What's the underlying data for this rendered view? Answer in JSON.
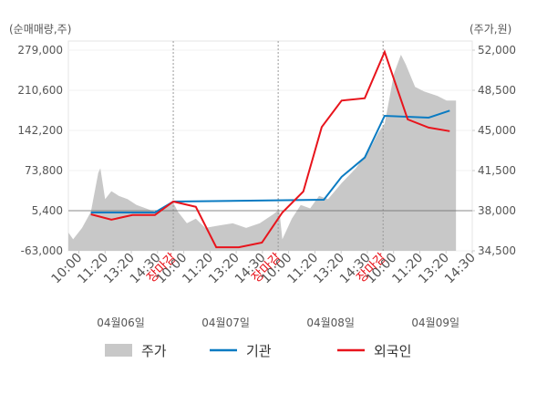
{
  "chart_data": {
    "type": "line",
    "ylabel": "(순매매량,주)",
    "y2label": "(주가,원)",
    "xlim": [
      0,
      77
    ],
    "xticks": [
      {
        "value": 2,
        "label": "10:00"
      },
      {
        "value": 7,
        "label": "11:20"
      },
      {
        "value": 12,
        "label": "13:20"
      },
      {
        "value": 17,
        "label": "14:30"
      },
      {
        "value": 20,
        "label": "장마감"
      },
      {
        "value": 22,
        "label": "10:00"
      },
      {
        "value": 27,
        "label": "11:20"
      },
      {
        "value": 32,
        "label": "13:20"
      },
      {
        "value": 37,
        "label": "14:30"
      },
      {
        "value": 40,
        "label": "장마감"
      },
      {
        "value": 42,
        "label": "10:00"
      },
      {
        "value": 47,
        "label": "11:20"
      },
      {
        "value": 52,
        "label": "13:20"
      },
      {
        "value": 57,
        "label": "14:30"
      },
      {
        "value": 60,
        "label": "장마감"
      },
      {
        "value": 62,
        "label": "10:00"
      },
      {
        "value": 67,
        "label": "11:20"
      },
      {
        "value": 72,
        "label": "13:20"
      },
      {
        "value": 77,
        "label": "14:30"
      }
    ],
    "x_groups": [
      "04월06일",
      "04월07일",
      "04월08일",
      "04월09일"
    ],
    "ylim": [
      -63000,
      279000
    ],
    "yticks": [
      {
        "value": 279000,
        "label": "279,000"
      },
      {
        "value": 210600,
        "label": "210,600"
      },
      {
        "value": 142200,
        "label": "142,200"
      },
      {
        "value": 73800,
        "label": "73,800"
      },
      {
        "value": 5400,
        "label": "5,400"
      },
      {
        "value": -63000,
        "label": "-63,000"
      }
    ],
    "y2lim": [
      34500,
      52000
    ],
    "y2ticks": [
      {
        "value": 52000,
        "label": "52,000"
      },
      {
        "value": 48500,
        "label": "48,500"
      },
      {
        "value": 45000,
        "label": "45,000"
      },
      {
        "value": 41500,
        "label": "41,500"
      },
      {
        "value": 38000,
        "label": "38,000"
      },
      {
        "value": 34500,
        "label": "34,500"
      }
    ],
    "series": [
      {
        "name": "주가",
        "color": "#c8c8c8",
        "axis": "y2",
        "kind": "area",
        "x": [
          0,
          0.9,
          2.6,
          4.3,
          5.7,
          6.1,
          7.0,
          8.2,
          9.6,
          11.3,
          13.0,
          14.8,
          16.5,
          19.1,
          20.0,
          20.9,
          22.6,
          24.3,
          26.1,
          28.7,
          31.3,
          33.9,
          36.5,
          39.1,
          40.2,
          40.8,
          42.6,
          44.3,
          46.1,
          47.8,
          49.5,
          52.1,
          54.8,
          57.4,
          59.1,
          60.3,
          60.8,
          62.1,
          63.4,
          64.3,
          66.1,
          67.8,
          70.4,
          72.1,
          73.9
        ],
        "values": [
          36100,
          35500,
          36500,
          37900,
          41300,
          41700,
          39000,
          39700,
          39300,
          39000,
          38500,
          38200,
          37900,
          38500,
          38700,
          37900,
          36900,
          37300,
          36500,
          36700,
          36900,
          36500,
          36900,
          37700,
          38100,
          35500,
          37300,
          38500,
          38200,
          39300,
          39000,
          40400,
          41700,
          43300,
          44800,
          45600,
          46800,
          50000,
          51600,
          50800,
          48800,
          48400,
          48000,
          47600,
          47600
        ]
      },
      {
        "name": "기관",
        "color": "#0a7bc2",
        "x": [
          4.3,
          16.5,
          20.0,
          48.7,
          52.1,
          56.5,
          60.3,
          68.7,
          72.7
        ],
        "values": [
          2300,
          2300,
          21000,
          24000,
          63000,
          96000,
          167000,
          164000,
          176000
        ]
      },
      {
        "name": "외국인",
        "color": "#e8141c",
        "x": [
          4.3,
          8.2,
          12.2,
          16.5,
          20.0,
          24.3,
          28.2,
          32.5,
          36.9,
          40.8,
          44.8,
          48.3,
          52.1,
          56.5,
          60.3,
          64.7,
          68.7,
          72.7
        ],
        "values": [
          -800,
          -10000,
          -2000,
          -2000,
          21000,
          12000,
          -57000,
          -57000,
          -49000,
          2300,
          38000,
          148000,
          193000,
          197000,
          276000,
          161000,
          147000,
          141000
        ]
      }
    ]
  }
}
